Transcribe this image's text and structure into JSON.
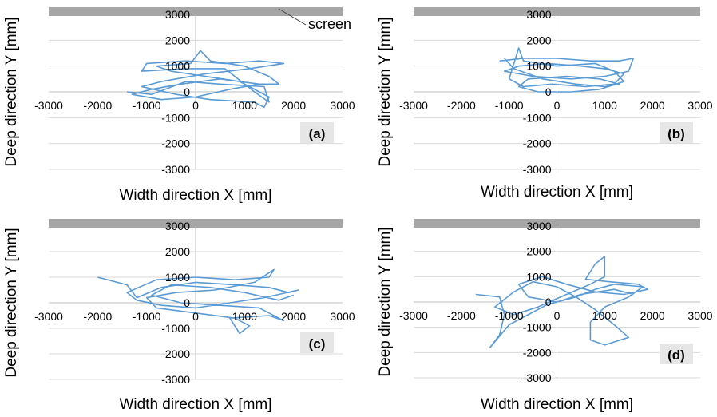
{
  "figure": {
    "screen_label": "screen",
    "colors": {
      "trajectory": "#5b9bd5",
      "gridline": "#d9d9d9",
      "axis": "#bfbfbf",
      "screen_bar": "#a6a6a6",
      "panel_label_bg": "#e6e6e6",
      "text": "#000000"
    }
  },
  "chart_data": [
    {
      "type": "line",
      "panel_label": "(a)",
      "xlabel": "Width direction X [mm]",
      "ylabel": "Deep direction Y [mm]",
      "xlim": [
        -3000,
        3000
      ],
      "ylim": [
        -3000,
        3000
      ],
      "x_ticks": [
        "-3000",
        "-2000",
        "-1000",
        "0",
        "1000",
        "2000",
        "3000"
      ],
      "y_ticks": [
        "-3000",
        "-2000",
        "-1000",
        "0",
        "1000",
        "2000",
        "3000"
      ],
      "grid": "horizontal",
      "series": [
        {
          "points": [
            [
              -1400,
              0
            ],
            [
              -900,
              -100
            ],
            [
              -200,
              400
            ],
            [
              500,
              300
            ],
            [
              1400,
              200
            ],
            [
              1500,
              -400
            ],
            [
              1200,
              0
            ],
            [
              600,
              900
            ],
            [
              -200,
              900
            ],
            [
              -1100,
              800
            ],
            [
              -1000,
              1100
            ],
            [
              -200,
              1200
            ],
            [
              600,
              1100
            ],
            [
              1300,
              1200
            ],
            [
              1800,
              1100
            ],
            [
              1100,
              900
            ],
            [
              200,
              700
            ],
            [
              -700,
              400
            ],
            [
              -1100,
              200
            ],
            [
              -400,
              -100
            ],
            [
              300,
              -300
            ],
            [
              1200,
              -400
            ],
            [
              1400,
              -600
            ],
            [
              1500,
              -200
            ],
            [
              900,
              400
            ],
            [
              200,
              600
            ],
            [
              -500,
              800
            ],
            [
              -800,
              1000
            ],
            [
              -100,
              1100
            ],
            [
              100,
              1600
            ],
            [
              300,
              1200
            ],
            [
              1000,
              1000
            ],
            [
              1500,
              600
            ],
            [
              1700,
              300
            ],
            [
              1300,
              300
            ],
            [
              500,
              500
            ],
            [
              -300,
              300
            ],
            [
              -900,
              100
            ],
            [
              -1300,
              -100
            ],
            [
              -700,
              -300
            ],
            [
              0,
              -200
            ],
            [
              700,
              100
            ],
            [
              1300,
              300
            ]
          ]
        }
      ]
    },
    {
      "type": "line",
      "panel_label": "(b)",
      "xlabel": "Width direction X [mm]",
      "ylabel": "Deep direction Y [mm]",
      "xlim": [
        -3000,
        3000
      ],
      "ylim": [
        -3000,
        3000
      ],
      "x_ticks": [
        "-3000",
        "-2000",
        "-1000",
        "0",
        "1000",
        "2000",
        "3000"
      ],
      "y_ticks": [
        "-3000",
        "-2000",
        "-1000",
        "0",
        "1000",
        "2000",
        "3000"
      ],
      "grid": "horizontal",
      "series": [
        {
          "points": [
            [
              -1200,
              1200
            ],
            [
              -700,
              1300
            ],
            [
              0,
              1300
            ],
            [
              700,
              1200
            ],
            [
              1300,
              1200
            ],
            [
              1600,
              1300
            ],
            [
              1500,
              800
            ],
            [
              1000,
              600
            ],
            [
              300,
              500
            ],
            [
              -500,
              600
            ],
            [
              -1100,
              800
            ],
            [
              -800,
              1000
            ],
            [
              -200,
              1100
            ],
            [
              500,
              1000
            ],
            [
              1000,
              900
            ],
            [
              1400,
              700
            ],
            [
              1200,
              300
            ],
            [
              600,
              200
            ],
            [
              -100,
              300
            ],
            [
              -700,
              200
            ],
            [
              -1000,
              500
            ],
            [
              -800,
              1700
            ],
            [
              -700,
              1200
            ],
            [
              0,
              1000
            ],
            [
              800,
              1100
            ],
            [
              1200,
              800
            ],
            [
              1400,
              400
            ],
            [
              900,
              100
            ],
            [
              300,
              0
            ],
            [
              -400,
              0
            ],
            [
              -800,
              200
            ],
            [
              -600,
              500
            ],
            [
              200,
              600
            ],
            [
              900,
              500
            ],
            [
              1300,
              300
            ],
            [
              1000,
              200
            ],
            [
              400,
              300
            ],
            [
              -300,
              500
            ],
            [
              -900,
              900
            ],
            [
              -1100,
              1300
            ]
          ]
        }
      ]
    },
    {
      "type": "line",
      "panel_label": "(c)",
      "xlabel": "Width direction X [mm]",
      "ylabel": "Deep direction Y [mm]",
      "xlim": [
        -3000,
        3000
      ],
      "ylim": [
        -3000,
        3000
      ],
      "x_ticks": [
        "-3000",
        "-2000",
        "-1000",
        "0",
        "1000",
        "2000",
        "3000"
      ],
      "y_ticks": [
        "-3000",
        "-2000",
        "-1000",
        "0",
        "1000",
        "2000",
        "3000"
      ],
      "grid": "horizontal",
      "series": [
        {
          "points": [
            [
              -2000,
              1000
            ],
            [
              -1400,
              700
            ],
            [
              -1200,
              200
            ],
            [
              -700,
              600
            ],
            [
              0,
              800
            ],
            [
              800,
              700
            ],
            [
              1500,
              600
            ],
            [
              1900,
              400
            ],
            [
              2100,
              500
            ],
            [
              1400,
              200
            ],
            [
              700,
              0
            ],
            [
              0,
              -200
            ],
            [
              -700,
              -100
            ],
            [
              -1200,
              100
            ],
            [
              -1400,
              400
            ],
            [
              -800,
              900
            ],
            [
              0,
              1000
            ],
            [
              800,
              900
            ],
            [
              1500,
              1000
            ],
            [
              1600,
              1300
            ],
            [
              1200,
              800
            ],
            [
              400,
              500
            ],
            [
              -400,
              400
            ],
            [
              -1000,
              200
            ],
            [
              -800,
              -200
            ],
            [
              0,
              -400
            ],
            [
              800,
              -600
            ],
            [
              1100,
              -900
            ],
            [
              900,
              -1200
            ],
            [
              700,
              -600
            ],
            [
              1500,
              -500
            ],
            [
              1800,
              -700
            ],
            [
              1300,
              -200
            ],
            [
              500,
              -100
            ],
            [
              -300,
              0
            ],
            [
              -900,
              300
            ],
            [
              -500,
              700
            ],
            [
              300,
              600
            ],
            [
              1000,
              400
            ],
            [
              1700,
              100
            ],
            [
              2000,
              300
            ]
          ]
        }
      ]
    },
    {
      "type": "line",
      "panel_label": "(d)",
      "xlabel": "Width direction X [mm]",
      "ylabel": "Deep direction Y [mm]",
      "xlim": [
        -3000,
        3000
      ],
      "ylim": [
        -3000,
        3000
      ],
      "x_ticks": [
        "-3000",
        "-2000",
        "-1000",
        "0",
        "1000",
        "2000",
        "3000"
      ],
      "y_ticks": [
        "-3000",
        "-2000",
        "-1000",
        "0",
        "1000",
        "2000",
        "3000"
      ],
      "grid": "horizontal",
      "series": [
        {
          "points": [
            [
              -1700,
              300
            ],
            [
              -1200,
              200
            ],
            [
              -1100,
              -500
            ],
            [
              -1200,
              -1300
            ],
            [
              -1400,
              -1800
            ],
            [
              -1000,
              -900
            ],
            [
              -700,
              -600
            ],
            [
              -200,
              -100
            ],
            [
              400,
              200
            ],
            [
              800,
              500
            ],
            [
              1200,
              700
            ],
            [
              1800,
              600
            ],
            [
              1500,
              200
            ],
            [
              1000,
              -200
            ],
            [
              700,
              -800
            ],
            [
              700,
              -1500
            ],
            [
              1000,
              -1700
            ],
            [
              1500,
              -1400
            ],
            [
              1200,
              -900
            ],
            [
              800,
              -300
            ],
            [
              400,
              200
            ],
            [
              0,
              600
            ],
            [
              -500,
              800
            ],
            [
              -900,
              400
            ],
            [
              -1300,
              -200
            ],
            [
              -900,
              -500
            ],
            [
              -400,
              -200
            ],
            [
              200,
              300
            ],
            [
              700,
              700
            ],
            [
              1000,
              1000
            ],
            [
              1000,
              1800
            ],
            [
              800,
              1500
            ],
            [
              600,
              900
            ],
            [
              1100,
              800
            ],
            [
              1700,
              700
            ],
            [
              1900,
              500
            ],
            [
              1400,
              300
            ],
            [
              800,
              400
            ],
            [
              200,
              700
            ],
            [
              -300,
              1000
            ],
            [
              -800,
              700
            ],
            [
              -600,
              200
            ],
            [
              0,
              0
            ],
            [
              500,
              300
            ],
            [
              1200,
              500
            ],
            [
              1600,
              300
            ]
          ]
        }
      ]
    }
  ]
}
